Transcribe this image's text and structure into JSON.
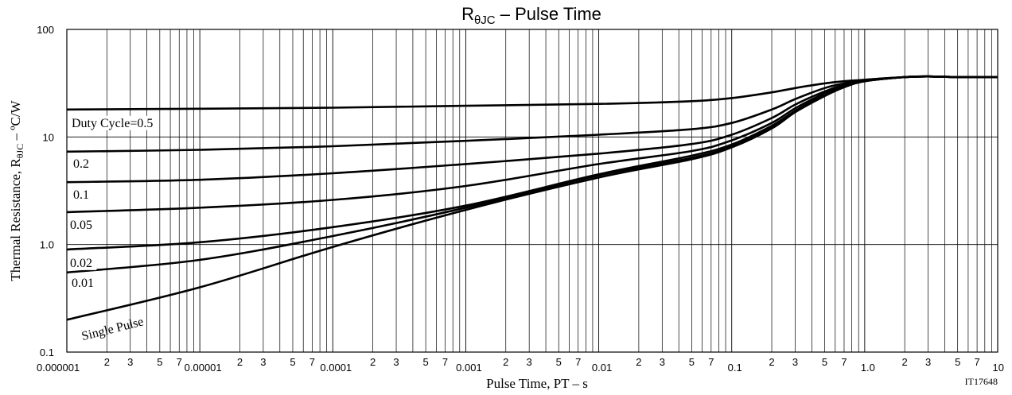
{
  "chart_data": {
    "type": "line",
    "title": {
      "main": "R",
      "sub": "θJC",
      "rest": " –  Pulse Time"
    },
    "xlabel": "Pulse Time, PT  –  s",
    "ylabel": {
      "main": "Thermal Resistance, R",
      "sub": "θJC",
      "rest": "  –  ºC/W"
    },
    "figure_id": "IT17648",
    "x_scale": "log",
    "y_scale": "log",
    "xlim": [
      1e-06,
      10
    ],
    "ylim": [
      0.1,
      100
    ],
    "grid": true,
    "x_decade_labels": [
      "0.000001",
      "0.00001",
      "0.0001",
      "0.001",
      "0.01",
      "0.1",
      "1.0",
      "10"
    ],
    "x_minor_labels": [
      "2",
      "3",
      "5",
      "7"
    ],
    "y_tick_labels": [
      "0.1",
      "1.0",
      "10",
      "100"
    ],
    "series": [
      {
        "name": "Duty Cycle=0.5",
        "x": [
          1e-06,
          1e-05,
          0.0001,
          0.001,
          0.01,
          0.05,
          0.1,
          0.2,
          0.3,
          0.5,
          0.7,
          1,
          2,
          3,
          5,
          10
        ],
        "y": [
          18,
          18.3,
          18.7,
          19.5,
          20.3,
          21.5,
          23,
          26,
          28.5,
          31.5,
          33,
          34,
          36,
          36.5,
          36,
          36
        ]
      },
      {
        "name": "0.2",
        "x": [
          1e-06,
          1e-05,
          0.0001,
          0.001,
          0.01,
          0.05,
          0.1,
          0.2,
          0.3,
          0.5,
          0.7,
          1,
          2,
          3,
          5,
          10
        ],
        "y": [
          7.3,
          7.6,
          8.2,
          9.2,
          10.5,
          11.8,
          13.5,
          18,
          22.5,
          28.5,
          31.5,
          34,
          36,
          36.5,
          36,
          36
        ]
      },
      {
        "name": "0.1",
        "x": [
          1e-06,
          1e-05,
          0.0001,
          0.001,
          0.01,
          0.05,
          0.1,
          0.2,
          0.3,
          0.5,
          0.7,
          1,
          2,
          3,
          5,
          10
        ],
        "y": [
          3.8,
          4.0,
          4.6,
          5.6,
          7.0,
          8.6,
          10.5,
          15,
          20,
          26.5,
          30.5,
          33.5,
          36,
          36.5,
          36,
          36
        ]
      },
      {
        "name": "0.05",
        "x": [
          1e-06,
          1e-05,
          0.0001,
          0.001,
          0.01,
          0.05,
          0.1,
          0.2,
          0.3,
          0.5,
          0.7,
          1,
          2,
          3,
          5,
          10
        ],
        "y": [
          2.0,
          2.2,
          2.6,
          3.5,
          5.6,
          7.4,
          9.3,
          13.5,
          18.5,
          25.5,
          30,
          33.5,
          36,
          36.5,
          36,
          36
        ]
      },
      {
        "name": "0.02",
        "x": [
          1e-06,
          1e-05,
          0.0001,
          0.001,
          0.01,
          0.05,
          0.1,
          0.2,
          0.3,
          0.5,
          0.7,
          1,
          2,
          3,
          5,
          10
        ],
        "y": [
          0.9,
          1.05,
          1.45,
          2.3,
          4.5,
          6.7,
          8.5,
          12.7,
          17.5,
          25,
          29.5,
          33,
          36,
          36.5,
          36,
          36
        ]
      },
      {
        "name": "0.01",
        "x": [
          1e-06,
          1e-05,
          0.0001,
          0.001,
          0.01,
          0.05,
          0.1,
          0.2,
          0.3,
          0.5,
          0.7,
          1,
          2,
          3,
          5,
          10
        ],
        "y": [
          0.55,
          0.72,
          1.2,
          2.2,
          4.4,
          6.4,
          8.2,
          12.3,
          17.2,
          24.5,
          29.2,
          33,
          36,
          36.5,
          36,
          36
        ]
      },
      {
        "name": "Single Pulse",
        "x": [
          1e-06,
          1e-05,
          0.0001,
          0.001,
          0.01,
          0.05,
          0.1,
          0.2,
          0.3,
          0.5,
          0.7,
          1,
          2,
          3,
          5,
          10
        ],
        "y": [
          0.2,
          0.4,
          0.95,
          2.1,
          4.2,
          6.2,
          8.0,
          12,
          17,
          24,
          29,
          33,
          36,
          36.5,
          36,
          36
        ]
      }
    ]
  }
}
